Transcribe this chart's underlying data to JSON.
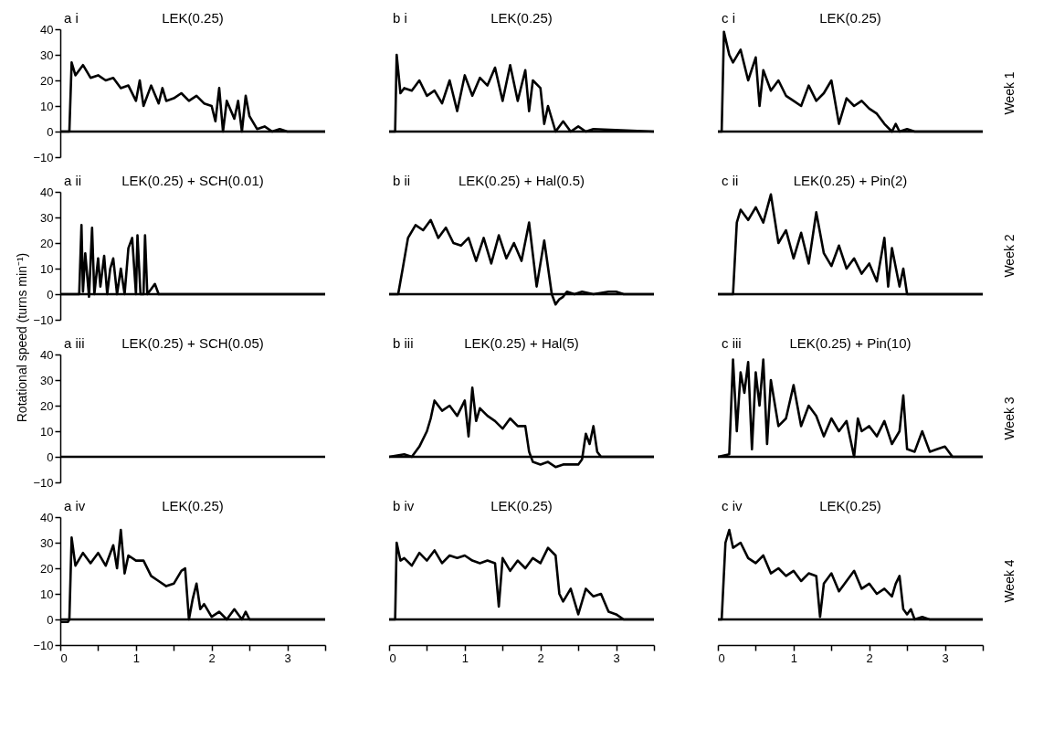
{
  "chart_data": [
    {
      "type": "line",
      "title": "LEK(0.25)",
      "annotations": [
        "a i"
      ],
      "xlim": [
        0,
        3.5
      ],
      "ylim": [
        -10,
        40
      ],
      "yticks": [
        -10,
        0,
        10,
        20,
        30,
        40
      ],
      "tick_labels": "y",
      "ref_lines": [
        {
          "axis": "y",
          "value": 0
        }
      ],
      "series": [
        {
          "color": "#000000",
          "x": [
            0,
            0.12,
            0.15,
            0.2,
            0.3,
            0.4,
            0.5,
            0.6,
            0.7,
            0.8,
            0.9,
            1.0,
            1.05,
            1.1,
            1.2,
            1.3,
            1.35,
            1.4,
            1.5,
            1.6,
            1.7,
            1.8,
            1.9,
            2.0,
            2.05,
            2.1,
            2.15,
            2.2,
            2.3,
            2.35,
            2.4,
            2.45,
            2.5,
            2.6,
            2.7,
            2.8,
            2.9,
            3.0,
            3.5
          ],
          "values": [
            0,
            0,
            27,
            22,
            26,
            21,
            22,
            20,
            21,
            17,
            18,
            12,
            20,
            10,
            18,
            11,
            17,
            12,
            13,
            15,
            12,
            14,
            11,
            10,
            4,
            17,
            0,
            12,
            5,
            12,
            0,
            14,
            6,
            1,
            2,
            0,
            1,
            0,
            0
          ]
        }
      ]
    },
    {
      "type": "line",
      "title": "LEK(0.25)",
      "annotations": [
        "b i"
      ],
      "xlim": [
        0,
        3.5
      ],
      "ylim": [
        -10,
        40
      ],
      "tick_labels": false,
      "ref_lines": [
        {
          "axis": "y",
          "value": 0
        }
      ],
      "series": [
        {
          "color": "#000000",
          "x": [
            0,
            0.08,
            0.1,
            0.15,
            0.2,
            0.3,
            0.4,
            0.5,
            0.6,
            0.7,
            0.8,
            0.9,
            1.0,
            1.1,
            1.2,
            1.3,
            1.4,
            1.5,
            1.6,
            1.7,
            1.8,
            1.85,
            1.9,
            2.0,
            2.05,
            2.1,
            2.2,
            2.3,
            2.4,
            2.5,
            2.6,
            2.7,
            3.5
          ],
          "values": [
            0,
            0,
            30,
            15,
            17,
            16,
            20,
            14,
            16,
            11,
            20,
            8,
            22,
            14,
            21,
            18,
            25,
            12,
            26,
            12,
            24,
            8,
            20,
            17,
            3,
            10,
            0,
            4,
            0,
            2,
            0,
            1,
            0
          ]
        }
      ]
    },
    {
      "type": "line",
      "title": "LEK(0.25)",
      "annotations": [
        "c i"
      ],
      "xlim": [
        0,
        3.5
      ],
      "ylim": [
        -10,
        40
      ],
      "y2label": "Week 1",
      "tick_labels": false,
      "ref_lines": [
        {
          "axis": "y",
          "value": 0
        }
      ],
      "series": [
        {
          "color": "#000000",
          "x": [
            0,
            0.05,
            0.08,
            0.15,
            0.2,
            0.3,
            0.4,
            0.5,
            0.55,
            0.6,
            0.7,
            0.8,
            0.9,
            1.0,
            1.1,
            1.2,
            1.3,
            1.4,
            1.5,
            1.6,
            1.7,
            1.8,
            1.9,
            2.0,
            2.1,
            2.2,
            2.3,
            2.35,
            2.4,
            2.5,
            2.6,
            3.5
          ],
          "values": [
            0,
            0,
            39,
            30,
            27,
            32,
            20,
            29,
            10,
            24,
            16,
            20,
            14,
            12,
            10,
            18,
            12,
            15,
            20,
            3,
            13,
            10,
            12,
            9,
            7,
            3,
            0,
            3,
            0,
            1,
            0,
            0
          ]
        }
      ]
    },
    {
      "type": "line",
      "title": "LEK(0.25) + SCH(0.01)",
      "annotations": [
        "a ii"
      ],
      "xlim": [
        0,
        3.5
      ],
      "ylabel": "Rotational speed (turns min⁻¹)",
      "ylim": [
        -10,
        40
      ],
      "yticks": [
        -10,
        0,
        10,
        20,
        30,
        40
      ],
      "tick_labels": "y",
      "ref_lines": [
        {
          "axis": "y",
          "value": 0
        }
      ],
      "series": [
        {
          "color": "#000000",
          "x": [
            0,
            0.25,
            0.28,
            0.3,
            0.33,
            0.38,
            0.42,
            0.45,
            0.5,
            0.53,
            0.58,
            0.62,
            0.66,
            0.7,
            0.75,
            0.8,
            0.85,
            0.9,
            0.95,
            1.0,
            1.02,
            1.06,
            1.1,
            1.12,
            1.15,
            1.2,
            1.25,
            1.3,
            3.5
          ],
          "values": [
            0,
            0,
            27,
            1,
            16,
            -1,
            26,
            0,
            14,
            3,
            15,
            0,
            10,
            14,
            0,
            10,
            0,
            18,
            22,
            0,
            23,
            0,
            0,
            23,
            0,
            2,
            4,
            0,
            0
          ]
        }
      ]
    },
    {
      "type": "line",
      "title": "LEK(0.25) + Hal(0.5)",
      "annotations": [
        "b ii"
      ],
      "xlim": [
        0,
        3.5
      ],
      "ylim": [
        -10,
        40
      ],
      "tick_labels": false,
      "ref_lines": [
        {
          "axis": "y",
          "value": 0
        }
      ],
      "series": [
        {
          "color": "#000000",
          "x": [
            0,
            0.12,
            0.18,
            0.25,
            0.35,
            0.45,
            0.55,
            0.65,
            0.75,
            0.85,
            0.95,
            1.05,
            1.15,
            1.25,
            1.35,
            1.45,
            1.55,
            1.65,
            1.75,
            1.85,
            1.95,
            2.05,
            2.15,
            2.2,
            2.25,
            2.3,
            2.35,
            2.45,
            2.55,
            2.7,
            2.9,
            3.0,
            3.1,
            3.5
          ],
          "values": [
            0,
            0,
            10,
            22,
            27,
            25,
            29,
            22,
            26,
            20,
            19,
            22,
            13,
            22,
            12,
            23,
            14,
            20,
            13,
            28,
            3,
            21,
            0,
            -4,
            -2,
            -1,
            1,
            0,
            1,
            0,
            1,
            1,
            0,
            0
          ]
        }
      ]
    },
    {
      "type": "line",
      "title": "LEK(0.25) + Pin(2)",
      "annotations": [
        "c ii"
      ],
      "xlim": [
        0,
        3.5
      ],
      "ylim": [
        -10,
        40
      ],
      "y2label": "Week 2",
      "tick_labels": false,
      "ref_lines": [
        {
          "axis": "y",
          "value": 0
        }
      ],
      "series": [
        {
          "color": "#000000",
          "x": [
            0,
            0.2,
            0.25,
            0.3,
            0.4,
            0.5,
            0.6,
            0.7,
            0.8,
            0.9,
            1.0,
            1.1,
            1.2,
            1.3,
            1.4,
            1.5,
            1.6,
            1.7,
            1.8,
            1.9,
            2.0,
            2.1,
            2.2,
            2.25,
            2.3,
            2.4,
            2.45,
            2.5,
            2.55,
            3.5
          ],
          "values": [
            0,
            0,
            28,
            33,
            29,
            34,
            28,
            39,
            20,
            25,
            14,
            24,
            12,
            32,
            16,
            11,
            19,
            10,
            14,
            8,
            12,
            5,
            22,
            3,
            18,
            3,
            10,
            0,
            0,
            0
          ]
        }
      ]
    },
    {
      "type": "line",
      "title": "LEK(0.25) + SCH(0.05)",
      "annotations": [
        "a iii"
      ],
      "xlim": [
        0,
        3.5
      ],
      "ylim": [
        -10,
        40
      ],
      "yticks": [
        -10,
        0,
        10,
        20,
        30,
        40
      ],
      "tick_labels": "y",
      "series": [
        {
          "color": "#000000",
          "x": [
            0,
            3.5
          ],
          "values": [
            0,
            0
          ]
        }
      ]
    },
    {
      "type": "line",
      "title": "LEK(0.25) + Hal(5)",
      "annotations": [
        "b iii"
      ],
      "xlim": [
        0,
        3.5
      ],
      "ylim": [
        -10,
        40
      ],
      "tick_labels": false,
      "ref_lines": [
        {
          "axis": "y",
          "value": 0
        }
      ],
      "series": [
        {
          "color": "#000000",
          "x": [
            0,
            0.2,
            0.3,
            0.4,
            0.5,
            0.55,
            0.6,
            0.7,
            0.8,
            0.9,
            1.0,
            1.05,
            1.1,
            1.15,
            1.2,
            1.3,
            1.4,
            1.5,
            1.6,
            1.7,
            1.8,
            1.85,
            1.9,
            2.0,
            2.1,
            2.2,
            2.3,
            2.4,
            2.5,
            2.55,
            2.6,
            2.65,
            2.7,
            2.75,
            2.8,
            3.5
          ],
          "values": [
            0,
            1,
            0,
            4,
            10,
            15,
            22,
            18,
            20,
            16,
            22,
            8,
            27,
            14,
            19,
            16,
            14,
            11,
            15,
            12,
            12,
            2,
            -2,
            -3,
            -2,
            -4,
            -3,
            -3,
            -3,
            -1,
            9,
            5,
            12,
            2,
            0,
            0
          ]
        }
      ]
    },
    {
      "type": "line",
      "title": "LEK(0.25) + Pin(10)",
      "annotations": [
        "c iii"
      ],
      "xlim": [
        0,
        3.5
      ],
      "ylim": [
        -10,
        40
      ],
      "y2label": "Week 3",
      "tick_labels": false,
      "ref_lines": [
        {
          "axis": "y",
          "value": 0
        }
      ],
      "series": [
        {
          "color": "#000000",
          "x": [
            0,
            0.15,
            0.2,
            0.25,
            0.3,
            0.35,
            0.4,
            0.45,
            0.5,
            0.55,
            0.6,
            0.65,
            0.7,
            0.8,
            0.9,
            1.0,
            1.1,
            1.2,
            1.3,
            1.4,
            1.5,
            1.6,
            1.7,
            1.8,
            1.85,
            1.9,
            2.0,
            2.1,
            2.2,
            2.3,
            2.4,
            2.45,
            2.5,
            2.6,
            2.7,
            2.8,
            2.9,
            3.0,
            3.1,
            3.5
          ],
          "values": [
            0,
            1,
            38,
            10,
            33,
            25,
            37,
            3,
            33,
            20,
            38,
            5,
            30,
            12,
            15,
            28,
            12,
            20,
            16,
            8,
            15,
            10,
            14,
            0,
            15,
            10,
            12,
            8,
            14,
            5,
            10,
            24,
            3,
            2,
            10,
            2,
            3,
            4,
            0,
            0
          ]
        }
      ]
    },
    {
      "type": "line",
      "title": "LEK(0.25)",
      "annotations": [
        "a iv"
      ],
      "xlim": [
        0,
        3.5
      ],
      "ylim": [
        -10,
        40
      ],
      "yticks": [
        -10,
        0,
        10,
        20,
        30,
        40
      ],
      "xticks": [
        0,
        {
          "value": 0.5,
          "label": null
        },
        1,
        {
          "value": 1.5,
          "label": null
        },
        2,
        {
          "value": 2.5,
          "label": null
        },
        3,
        {
          "value": 3.5,
          "label": null
        }
      ],
      "ref_lines": [
        {
          "axis": "y",
          "value": 0
        }
      ],
      "series": [
        {
          "color": "#000000",
          "x": [
            0,
            0.1,
            0.12,
            0.15,
            0.2,
            0.3,
            0.4,
            0.5,
            0.6,
            0.7,
            0.75,
            0.8,
            0.85,
            0.9,
            1.0,
            1.1,
            1.2,
            1.3,
            1.4,
            1.5,
            1.6,
            1.65,
            1.7,
            1.75,
            1.8,
            1.85,
            1.9,
            2.0,
            2.1,
            2.2,
            2.3,
            2.4,
            2.45,
            2.5,
            3.5
          ],
          "values": [
            -1,
            -1,
            0,
            32,
            21,
            26,
            22,
            26,
            21,
            29,
            20,
            35,
            18,
            25,
            23,
            23,
            17,
            15,
            13,
            14,
            19,
            20,
            0,
            8,
            14,
            4,
            6,
            1,
            3,
            0,
            4,
            0,
            3,
            0,
            0
          ]
        }
      ]
    },
    {
      "type": "line",
      "title": "LEK(0.25)",
      "annotations": [
        "b iv"
      ],
      "ylim": [
        -10,
        40
      ],
      "xlim": [
        0,
        3.5
      ],
      "xticks": [
        0,
        {
          "value": 0.5,
          "label": null
        },
        1,
        {
          "value": 1.5,
          "label": null
        },
        2,
        {
          "value": 2.5,
          "label": null
        },
        3,
        {
          "value": 3.5,
          "label": null
        }
      ],
      "tick_labels": "x",
      "ref_lines": [
        {
          "axis": "y",
          "value": 0
        }
      ],
      "series": [
        {
          "color": "#000000",
          "x": [
            0,
            0.08,
            0.1,
            0.15,
            0.2,
            0.3,
            0.4,
            0.5,
            0.6,
            0.7,
            0.8,
            0.9,
            1.0,
            1.1,
            1.2,
            1.3,
            1.4,
            1.45,
            1.5,
            1.6,
            1.7,
            1.8,
            1.9,
            2.0,
            2.1,
            2.2,
            2.25,
            2.3,
            2.4,
            2.5,
            2.6,
            2.7,
            2.8,
            2.9,
            3.0,
            3.1,
            3.5
          ],
          "values": [
            0,
            0,
            30,
            23,
            24,
            21,
            26,
            23,
            27,
            22,
            25,
            24,
            25,
            23,
            22,
            23,
            22,
            5,
            24,
            19,
            23,
            20,
            24,
            22,
            28,
            25,
            10,
            7,
            12,
            2,
            12,
            9,
            10,
            3,
            2,
            0,
            0
          ]
        }
      ]
    },
    {
      "type": "line",
      "title": "LEK(0.25)",
      "annotations": [
        "c iv"
      ],
      "ylim": [
        -10,
        40
      ],
      "y2label": "Week 4",
      "xlim": [
        0,
        3.5
      ],
      "xticks": [
        0,
        {
          "value": 0.5,
          "label": null
        },
        1,
        {
          "value": 1.5,
          "label": null
        },
        2,
        {
          "value": 2.5,
          "label": null
        },
        3,
        {
          "value": 3.5,
          "label": null
        }
      ],
      "tick_labels": "x",
      "ref_lines": [
        {
          "axis": "y",
          "value": 0
        }
      ],
      "series": [
        {
          "color": "#000000",
          "x": [
            0,
            0.05,
            0.1,
            0.15,
            0.2,
            0.3,
            0.4,
            0.5,
            0.6,
            0.7,
            0.8,
            0.9,
            1.0,
            1.1,
            1.2,
            1.3,
            1.35,
            1.4,
            1.5,
            1.6,
            1.7,
            1.8,
            1.9,
            2.0,
            2.1,
            2.2,
            2.3,
            2.35,
            2.4,
            2.45,
            2.5,
            2.55,
            2.6,
            2.7,
            2.8,
            3.5
          ],
          "values": [
            0,
            0,
            30,
            35,
            28,
            30,
            24,
            22,
            25,
            18,
            20,
            17,
            19,
            15,
            18,
            17,
            1,
            14,
            18,
            11,
            15,
            19,
            12,
            14,
            10,
            12,
            9,
            14,
            17,
            4,
            2,
            4,
            0,
            1,
            0,
            0
          ]
        }
      ]
    }
  ]
}
